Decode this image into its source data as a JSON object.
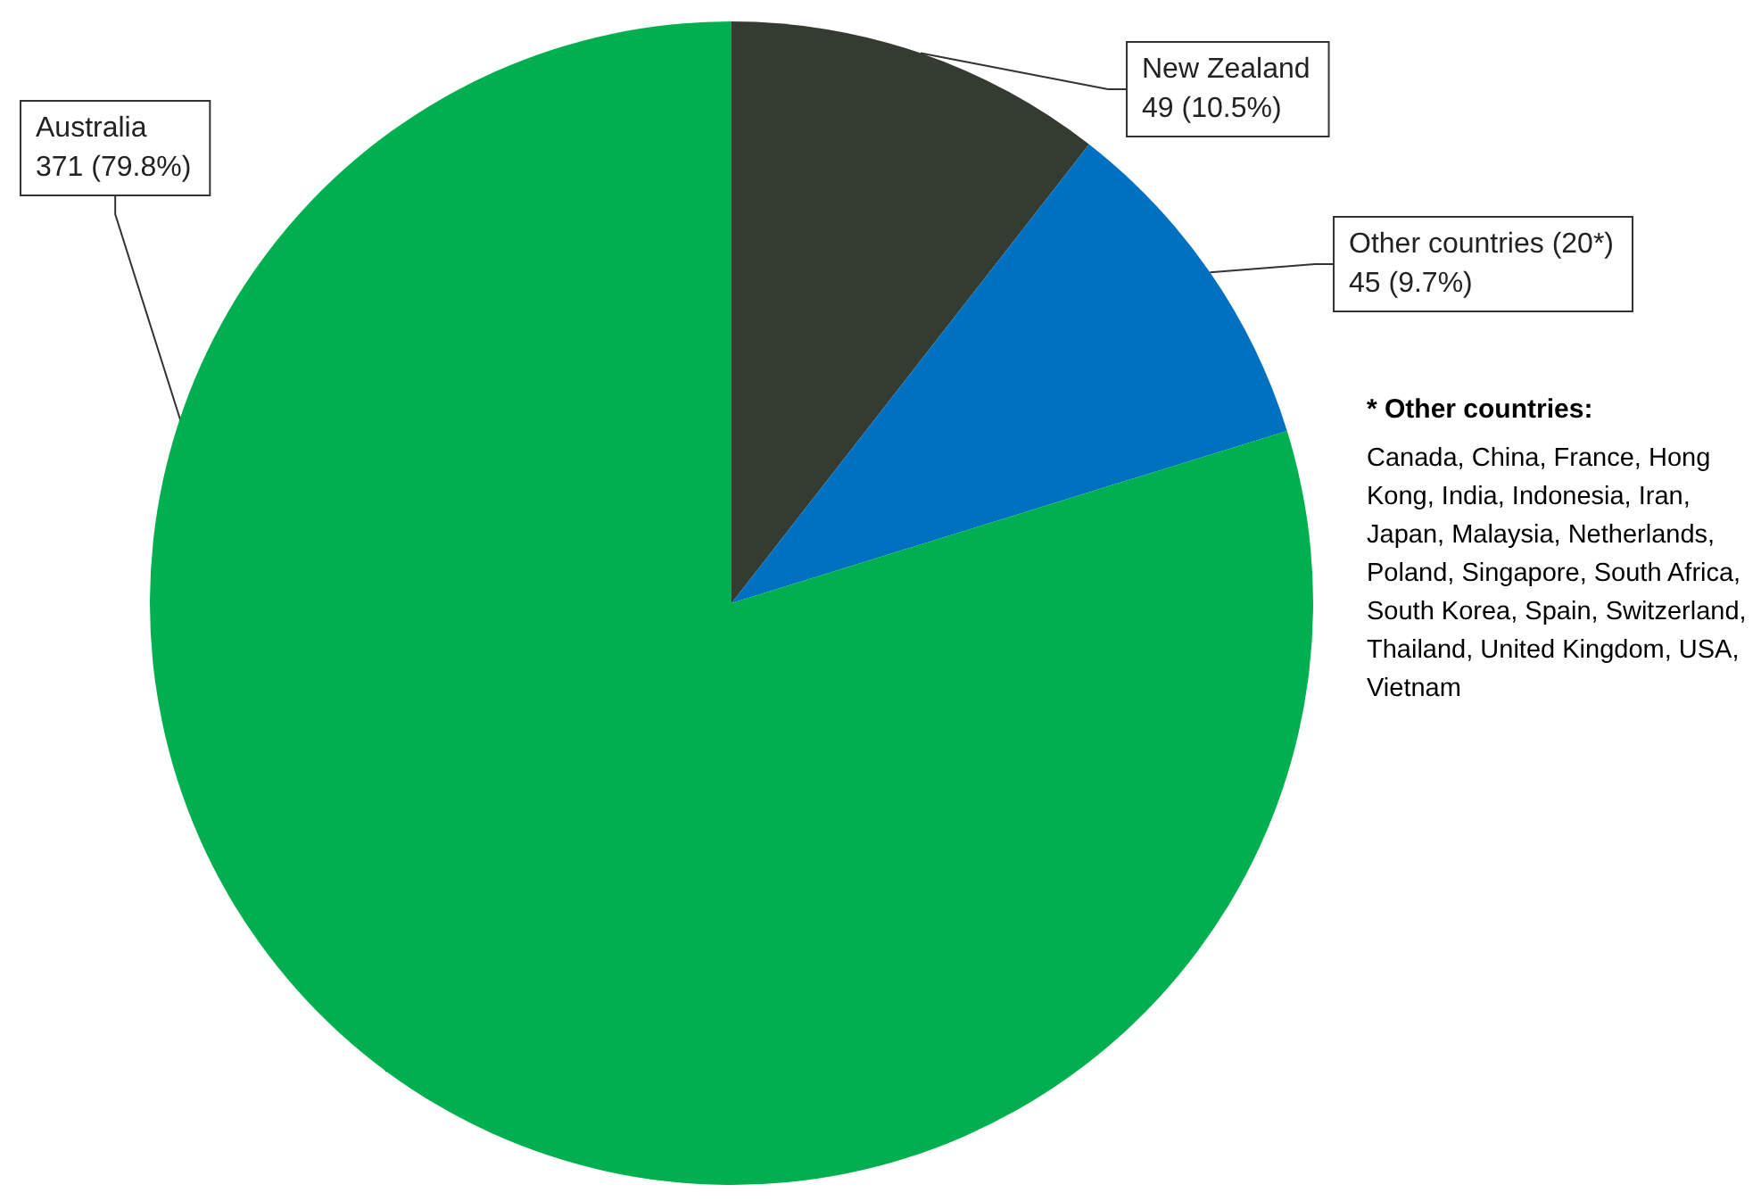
{
  "chart_data": {
    "type": "pie",
    "categories": [
      "New Zealand",
      "Other countries (20*)",
      "Australia"
    ],
    "values": [
      49,
      45,
      371
    ],
    "value_labels": [
      "49 (10.5%)",
      "45 (9.7%)",
      "371 (79.8%)"
    ],
    "colors": [
      "#343b31",
      "#0070c0",
      "#00b050"
    ],
    "legend": false,
    "annotations": [
      "* Other countries:",
      "Canada, China, France, Hong Kong, India, Indonesia, Iran, Japan, Malaysia, Netherlands, Poland, Singapore, South Africa, South Korea, Spain, Switzerland, Thailand, United Kingdom, USA, Vietnam"
    ]
  }
}
